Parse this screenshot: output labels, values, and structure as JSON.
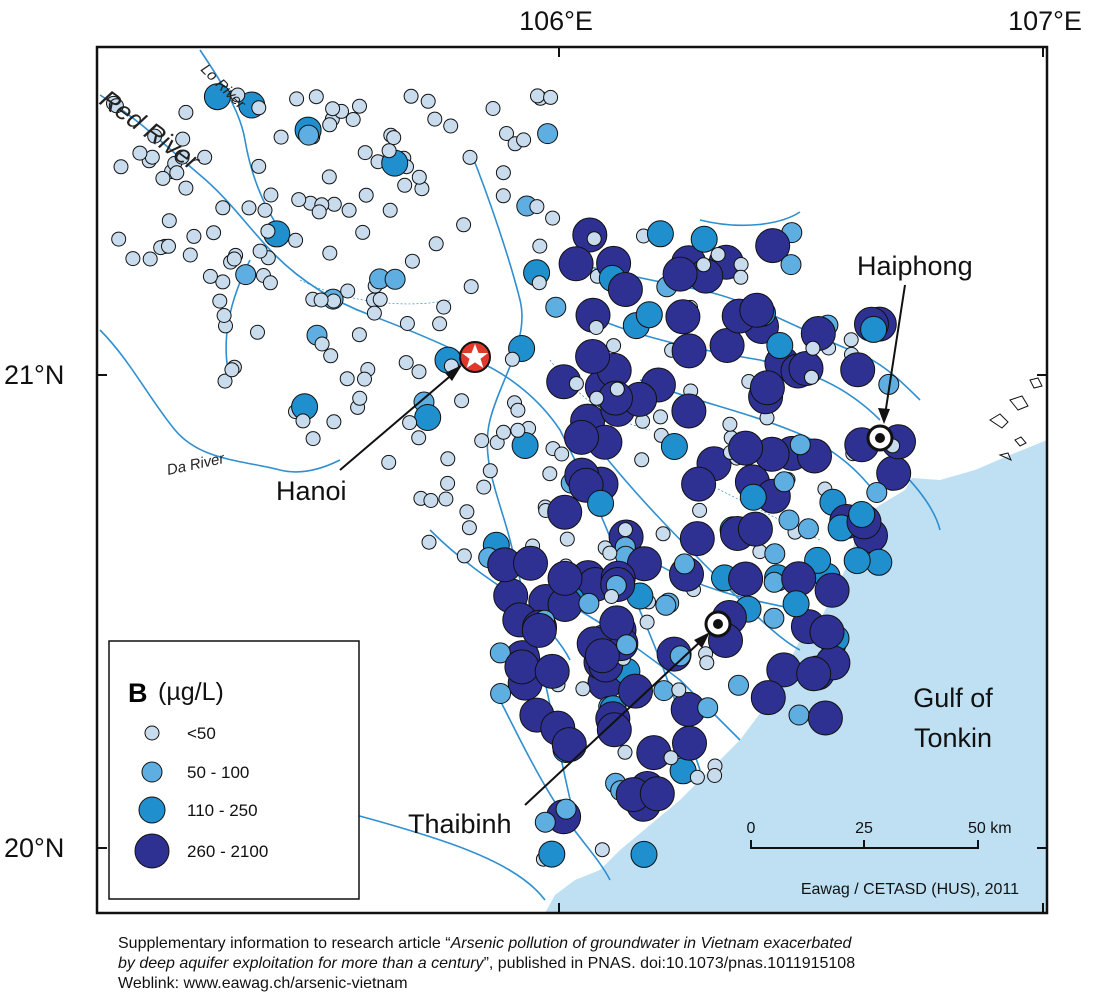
{
  "coordinates": {
    "lon_labels": [
      "106°E",
      "107°E"
    ],
    "lat_labels": [
      "21°N",
      "20°N"
    ]
  },
  "cities": {
    "hanoi": "Hanoi",
    "haiphong": "Haiphong",
    "thaibinh": "Thaibinh"
  },
  "rivers": {
    "red": "Red River",
    "lo": "Lo River",
    "da": "Da River"
  },
  "sea_label_line1": "Gulf of",
  "sea_label_line2": "Tonkin",
  "legend": {
    "title_letter": "B",
    "title_unit": "(µg/L)",
    "classes": [
      "<50",
      "50 - 100",
      "110 - 250",
      "260 - 2100"
    ]
  },
  "scale_bar": {
    "ticks": [
      "0",
      "25",
      "50 km"
    ]
  },
  "credit": "Eawag / CETASD (HUS), 2011",
  "footer": {
    "line1_prefix": "Supplementary information to research article “",
    "line1_italic": "Arsenic pollution of groundwater in Vietnam exacerbated",
    "line2_italic": "by deep aquifer exploitation for more than a century",
    "line2_suffix": "”, published in PNAS. doi:10.1073/pnas.1011915108",
    "line3": "Weblink: www.eawag.ch/arsenic-vietnam"
  },
  "colors": {
    "sea": "#bfe0f3",
    "river": "#2f8fd0",
    "class_1": "#c9dcee",
    "class_2": "#5eaee2",
    "class_3": "#1f8fcd",
    "class_4": "#2e3192",
    "hanoi_marker": "#e0392b"
  }
}
